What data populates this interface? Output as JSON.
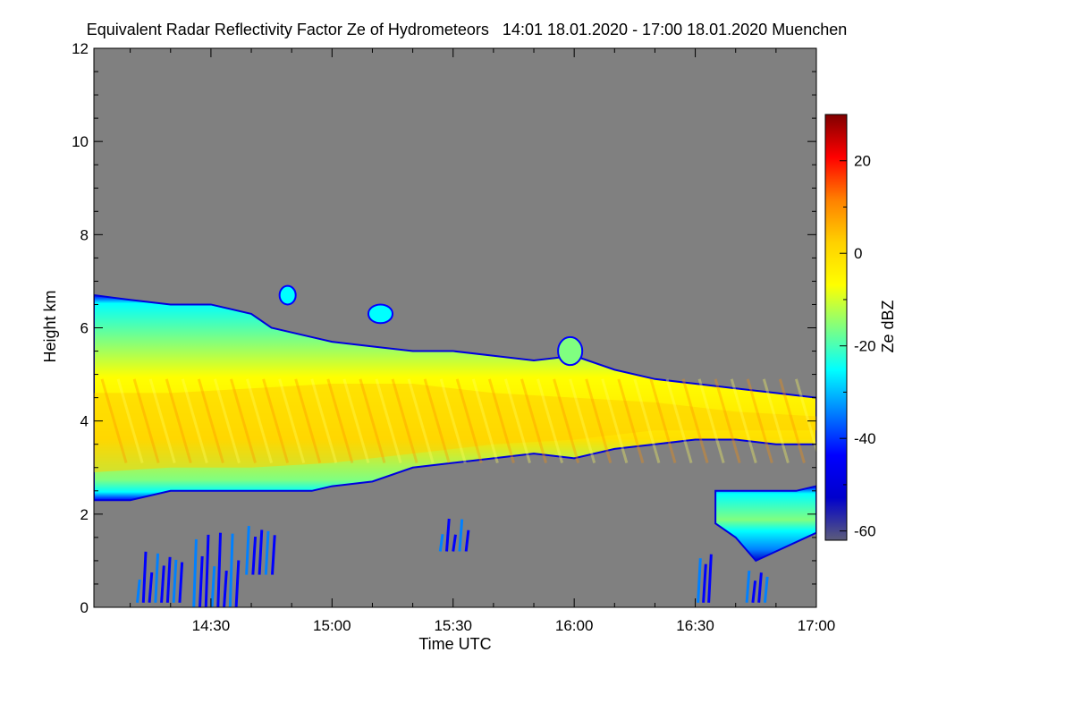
{
  "chart_data": {
    "type": "heatmap",
    "title": "Equivalent Radar Reflectivity Factor Ze of Hydrometeors   14:01 18.01.2020 - 17:00 18.01.2020 Muenchen",
    "xlabel": "Time UTC",
    "ylabel": "Height km",
    "colorbar_label": "Ze dBZ",
    "x_ticks": [
      "14:30",
      "15:00",
      "15:30",
      "16:00",
      "16:30",
      "17:00"
    ],
    "x_tick_minutes": [
      30,
      60,
      90,
      120,
      150,
      180
    ],
    "xlim_minutes": [
      1,
      180
    ],
    "y_ticks": [
      0,
      2,
      4,
      6,
      8,
      10,
      12
    ],
    "ylim": [
      0,
      12
    ],
    "colorbar_ticks": [
      -60,
      -40,
      -20,
      0,
      20
    ],
    "colorbar_range": [
      -62,
      30
    ],
    "background_color": "#808080",
    "colormap": [
      "#5c5c7a",
      "#0000cc",
      "#0000ff",
      "#0080ff",
      "#00ffff",
      "#80ff80",
      "#ffff00",
      "#ffd000",
      "#ff8000",
      "#ff0000",
      "#800000"
    ],
    "cloud_layers": [
      {
        "x": [
          1,
          10,
          20,
          30,
          40,
          45,
          50,
          55,
          60,
          70,
          80,
          90,
          100,
          110,
          120,
          130,
          140,
          150,
          160,
          170,
          180
        ],
        "top": [
          6.7,
          6.6,
          6.5,
          6.5,
          6.3,
          6.0,
          5.9,
          5.8,
          5.7,
          5.6,
          5.5,
          5.5,
          5.4,
          5.3,
          5.4,
          5.1,
          4.9,
          4.8,
          4.7,
          4.6,
          4.5
        ],
        "bottom": [
          2.3,
          2.3,
          2.5,
          2.5,
          2.5,
          2.5,
          2.5,
          2.5,
          2.6,
          2.7,
          3.0,
          3.1,
          3.2,
          3.3,
          3.2,
          3.4,
          3.5,
          3.6,
          3.6,
          3.5,
          3.5
        ]
      },
      {
        "x": [
          155,
          160,
          165,
          170,
          175,
          180
        ],
        "top": [
          2.5,
          2.5,
          2.5,
          2.5,
          2.5,
          2.6
        ],
        "bottom": [
          1.8,
          1.5,
          1.0,
          1.2,
          1.4,
          1.6
        ]
      }
    ],
    "core_band": {
      "x": [
        1,
        20,
        40,
        60,
        80,
        100,
        120,
        140,
        160,
        180
      ],
      "top": [
        4.6,
        4.6,
        4.7,
        4.8,
        4.8,
        4.6,
        4.5,
        4.4,
        4.2,
        4.1
      ],
      "bottom": [
        2.9,
        3.0,
        3.0,
        3.1,
        3.3,
        3.5,
        3.6,
        3.8,
        3.8,
        3.8
      ],
      "peak_dbz": 2
    },
    "upper_patches": [
      {
        "x": [
          69,
          75
        ],
        "y": [
          6.1,
          6.5
        ],
        "dbz": -28
      },
      {
        "x": [
          47,
          51
        ],
        "y": [
          6.5,
          6.9
        ],
        "dbz": -25
      },
      {
        "x": [
          116,
          122
        ],
        "y": [
          5.2,
          5.8
        ],
        "dbz": -20
      }
    ],
    "low_echoes": [
      {
        "x": [
          11,
          23
        ],
        "y": [
          0.1,
          1.2
        ],
        "dbz": -45
      },
      {
        "x": [
          25,
          37
        ],
        "y": [
          0.0,
          1.6
        ],
        "dbz": -40
      },
      {
        "x": [
          38,
          46
        ],
        "y": [
          0.7,
          1.8
        ],
        "dbz": -42
      },
      {
        "x": [
          86,
          94
        ],
        "y": [
          1.2,
          1.9
        ],
        "dbz": -45
      },
      {
        "x": [
          150,
          154
        ],
        "y": [
          0.1,
          1.2
        ],
        "dbz": -40
      },
      {
        "x": [
          162,
          168
        ],
        "y": [
          0.1,
          0.8
        ],
        "dbz": -45
      }
    ]
  }
}
